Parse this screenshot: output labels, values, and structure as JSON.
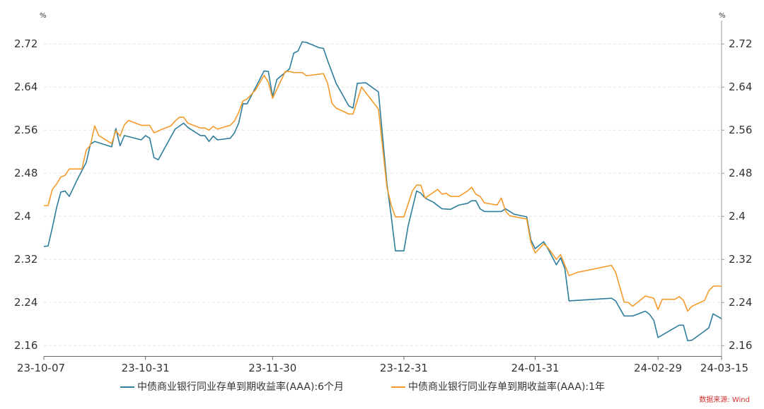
{
  "chart_data": {
    "type": "line",
    "y_unit": "%",
    "y2_unit": "%",
    "source": "数据来源: Wind",
    "xlim": [
      "23-10-07",
      "24-03-15"
    ],
    "xticks": [
      "23-10-07",
      "23-10-31",
      "23-11-30",
      "23-12-31",
      "24-01-31",
      "24-02-29",
      "24-03-15"
    ],
    "ylim": [
      2.14,
      2.75
    ],
    "yticks": [
      2.16,
      2.24,
      2.32,
      2.4,
      2.48,
      2.56,
      2.64,
      2.72
    ],
    "y2lim": [
      2.14,
      2.75
    ],
    "y2ticks": [
      2.16,
      2.24,
      2.32,
      2.4,
      2.48,
      2.56,
      2.64,
      2.72
    ],
    "grid": true,
    "legend": "bottom",
    "series": [
      {
        "name": "中债商业银行同业存单到期收益率(AAA):6个月",
        "color": "#2e7d9b",
        "x": [
          "23-10-07",
          "23-10-08",
          "23-10-09",
          "23-10-10",
          "23-10-11",
          "23-10-12",
          "23-10-13",
          "23-10-15",
          "23-10-17",
          "23-10-18",
          "23-10-19",
          "23-10-23",
          "23-10-24",
          "23-10-25",
          "23-10-26",
          "23-10-30",
          "23-10-31",
          "23-11-01",
          "23-11-02",
          "23-11-03",
          "23-11-07",
          "23-11-09",
          "23-11-10",
          "23-11-13",
          "23-11-14",
          "23-11-15",
          "23-11-16",
          "23-11-17",
          "23-11-20",
          "23-11-21",
          "23-11-22",
          "23-11-23",
          "23-11-24",
          "23-11-28",
          "23-11-29",
          "23-11-30",
          "23-12-01",
          "23-12-04",
          "23-12-05",
          "23-12-06",
          "23-12-07",
          "23-12-08",
          "23-12-11",
          "23-12-12",
          "23-12-13",
          "23-12-15",
          "23-12-18",
          "23-12-19",
          "23-12-20",
          "23-12-22",
          "23-12-25",
          "23-12-27",
          "23-12-28",
          "23-12-29",
          "23-12-31",
          "24-01-01",
          "24-01-03",
          "24-01-04",
          "24-01-05",
          "24-01-07",
          "24-01-09",
          "24-01-11",
          "24-01-13",
          "24-01-15",
          "24-01-16",
          "24-01-17",
          "24-01-18",
          "24-01-19",
          "24-01-23",
          "24-01-24",
          "24-01-26",
          "24-01-29",
          "24-01-30",
          "24-01-31",
          "24-02-02",
          "24-02-03",
          "24-02-05",
          "24-02-06",
          "24-02-07",
          "24-02-08",
          "24-02-18",
          "24-02-19",
          "24-02-21",
          "24-02-23",
          "24-02-26",
          "24-02-27",
          "24-02-28",
          "24-02-29",
          "24-03-05",
          "24-03-06",
          "24-03-07",
          "24-03-08",
          "24-03-11",
          "24-03-12",
          "24-03-13",
          "24-03-15"
        ],
        "values": [
          2.344,
          2.345,
          2.379,
          2.416,
          2.445,
          2.447,
          2.437,
          2.47,
          2.5,
          2.534,
          2.539,
          2.529,
          2.563,
          2.531,
          2.55,
          2.542,
          2.55,
          2.545,
          2.509,
          2.505,
          2.562,
          2.573,
          2.565,
          2.55,
          2.55,
          2.539,
          2.549,
          2.542,
          2.545,
          2.555,
          2.573,
          2.609,
          2.609,
          2.67,
          2.669,
          2.622,
          2.654,
          2.674,
          2.703,
          2.707,
          2.724,
          2.723,
          2.713,
          2.712,
          2.689,
          2.647,
          2.605,
          2.601,
          2.647,
          2.648,
          2.631,
          2.46,
          2.401,
          2.336,
          2.336,
          2.382,
          2.447,
          2.443,
          2.434,
          2.426,
          2.414,
          2.413,
          2.421,
          2.424,
          2.429,
          2.429,
          2.414,
          2.409,
          2.409,
          2.414,
          2.404,
          2.399,
          2.356,
          2.34,
          2.353,
          2.34,
          2.31,
          2.323,
          2.303,
          2.243,
          2.248,
          2.243,
          2.215,
          2.215,
          2.224,
          2.218,
          2.207,
          2.175,
          2.198,
          2.198,
          2.169,
          2.17,
          2.187,
          2.193,
          2.219,
          2.21
        ]
      },
      {
        "name": "中债商业银行同业存单到期收益率(AAA):1年",
        "color": "#f39a2b",
        "x": [
          "23-10-07",
          "23-10-08",
          "23-10-09",
          "23-10-10",
          "23-10-11",
          "23-10-12",
          "23-10-13",
          "23-10-16",
          "23-10-17",
          "23-10-18",
          "23-10-19",
          "23-10-20",
          "23-10-23",
          "23-10-24",
          "23-10-25",
          "23-10-26",
          "23-10-27",
          "23-10-30",
          "23-11-01",
          "23-11-02",
          "23-11-04",
          "23-11-06",
          "23-11-07",
          "23-11-08",
          "23-11-09",
          "23-11-10",
          "23-11-13",
          "23-11-14",
          "23-11-15",
          "23-11-16",
          "23-11-17",
          "23-11-20",
          "23-11-21",
          "23-11-22",
          "23-11-23",
          "23-11-24",
          "23-11-26",
          "23-11-28",
          "23-11-29",
          "23-11-30",
          "23-12-03",
          "23-12-04",
          "23-12-05",
          "23-12-07",
          "23-12-08",
          "23-12-12",
          "23-12-13",
          "23-12-14",
          "23-12-15",
          "23-12-18",
          "23-12-19",
          "23-12-21",
          "23-12-25",
          "23-12-27",
          "23-12-28",
          "23-12-29",
          "23-12-31",
          "24-01-02",
          "24-01-03",
          "24-01-04",
          "24-01-05",
          "24-01-08",
          "24-01-09",
          "24-01-10",
          "24-01-11",
          "24-01-13",
          "24-01-15",
          "24-01-16",
          "24-01-17",
          "24-01-18",
          "24-01-19",
          "24-01-22",
          "24-01-23",
          "24-01-24",
          "24-01-25",
          "24-01-29",
          "24-01-30",
          "24-01-31",
          "24-02-02",
          "24-02-03",
          "24-02-05",
          "24-02-06",
          "24-02-08",
          "24-02-10",
          "24-02-18",
          "24-02-19",
          "24-02-21",
          "24-02-22",
          "24-02-23",
          "24-02-26",
          "24-02-28",
          "24-02-29",
          "24-03-01",
          "24-03-04",
          "24-03-05",
          "24-03-06",
          "24-03-07",
          "24-03-08",
          "24-03-11",
          "24-03-12",
          "24-03-13",
          "24-03-14",
          "24-03-15"
        ],
        "values": [
          2.42,
          2.42,
          2.45,
          2.46,
          2.473,
          2.476,
          2.488,
          2.488,
          2.523,
          2.532,
          2.568,
          2.55,
          2.535,
          2.559,
          2.549,
          2.57,
          2.578,
          2.569,
          2.569,
          2.555,
          2.562,
          2.568,
          2.577,
          2.584,
          2.584,
          2.573,
          2.564,
          2.564,
          2.56,
          2.567,
          2.562,
          2.569,
          2.577,
          2.593,
          2.614,
          2.618,
          2.635,
          2.662,
          2.649,
          2.619,
          2.669,
          2.669,
          2.667,
          2.667,
          2.661,
          2.665,
          2.647,
          2.61,
          2.601,
          2.59,
          2.59,
          2.64,
          2.599,
          2.454,
          2.421,
          2.399,
          2.399,
          2.447,
          2.458,
          2.458,
          2.434,
          2.45,
          2.441,
          2.443,
          2.437,
          2.437,
          2.447,
          2.454,
          2.441,
          2.437,
          2.425,
          2.421,
          2.434,
          2.41,
          2.401,
          2.395,
          2.351,
          2.332,
          2.349,
          2.342,
          2.32,
          2.329,
          2.29,
          2.296,
          2.309,
          2.296,
          2.241,
          2.24,
          2.233,
          2.252,
          2.248,
          2.227,
          2.246,
          2.246,
          2.251,
          2.244,
          2.224,
          2.233,
          2.244,
          2.262,
          2.27,
          2.271,
          2.27
        ]
      }
    ]
  }
}
